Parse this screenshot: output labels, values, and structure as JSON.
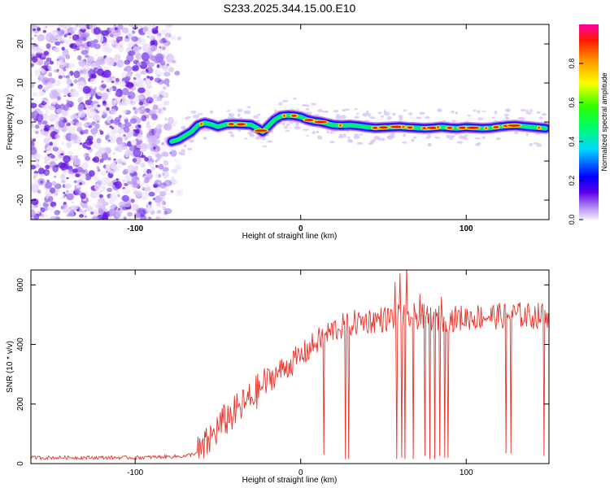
{
  "title": "S233.2025.344.15.00.E10",
  "chart_data": [
    {
      "type": "heatmap",
      "xlabel": "Height of straight line (km)",
      "ylabel": "Frequency (Hz)",
      "xlim": [
        -163,
        150
      ],
      "ylim": [
        -25,
        25
      ],
      "xticks": [
        -100,
        0,
        100
      ],
      "yticks": [
        -20,
        -10,
        0,
        10,
        20
      ],
      "noise_region_x": [
        -163,
        -80
      ],
      "ridge": {
        "x": [
          -78,
          -74,
          -70,
          -66,
          -62,
          -58,
          -54,
          -50,
          -45,
          -40,
          -35,
          -30,
          -26,
          -23,
          -20,
          -16,
          -12,
          -8,
          -4,
          0,
          4,
          8,
          12,
          16,
          20,
          25,
          30,
          35,
          40,
          45,
          50,
          55,
          60,
          65,
          70,
          75,
          80,
          85,
          90,
          95,
          100,
          105,
          110,
          115,
          120,
          125,
          130,
          135,
          140,
          145,
          148
        ],
        "y": [
          -5,
          -4.5,
          -3.5,
          -2.5,
          -0.8,
          -0.2,
          -0.6,
          -1.2,
          -0.6,
          -0.5,
          -0.6,
          -0.7,
          -1.6,
          -2.5,
          -1.2,
          0.5,
          1.5,
          1.7,
          1.6,
          1.3,
          0.6,
          0.2,
          0,
          -0.4,
          -0.8,
          -0.9,
          -0.8,
          -1,
          -1.3,
          -1.5,
          -1.4,
          -1.3,
          -1.2,
          -1.4,
          -1.5,
          -1.6,
          -1.5,
          -1.3,
          -1.5,
          -1.6,
          -1.4,
          -1.5,
          -1.6,
          -1.5,
          -1.2,
          -1,
          -0.9,
          -1.1,
          -1.3,
          -1.5,
          -1.6
        ]
      },
      "colorbar": {
        "label": "Normalized spectral amplitude",
        "range": [
          0,
          1
        ],
        "ticks": [
          "0.0",
          "0.2",
          "0.4",
          "0.6",
          "0.8"
        ]
      }
    },
    {
      "type": "line",
      "xlabel": "Height of straight line (km)",
      "ylabel": "SNR (10 * v/v)",
      "xlim": [
        -163,
        150
      ],
      "ylim": [
        0,
        650
      ],
      "xticks": [
        -100,
        0,
        100
      ],
      "yticks": [
        0,
        200,
        400,
        600
      ],
      "color": "#e8332a",
      "trend": {
        "x": [
          -163,
          -100,
          -70,
          -60,
          -55,
          -50,
          -45,
          -40,
          -30,
          -20,
          -10,
          0,
          10,
          20,
          30,
          40,
          50,
          60,
          70,
          80,
          90,
          100,
          110,
          120,
          130,
          140,
          150
        ],
        "y": [
          20,
          20,
          25,
          40,
          80,
          120,
          150,
          170,
          220,
          280,
          320,
          360,
          410,
          450,
          470,
          480,
          485,
          490,
          495,
          490,
          485,
          490,
          495,
          495,
          500,
          495,
          500
        ]
      },
      "dips": [
        {
          "x": 14,
          "y": 30
        },
        {
          "x": 27,
          "y": 15
        },
        {
          "x": 29,
          "y": 15
        },
        {
          "x": 58,
          "y": 15
        },
        {
          "x": 61,
          "y": 20
        },
        {
          "x": 63,
          "y": 15
        },
        {
          "x": 68,
          "y": 15
        },
        {
          "x": 72,
          "y": 20
        },
        {
          "x": 75,
          "y": 25
        },
        {
          "x": 78,
          "y": 15
        },
        {
          "x": 81,
          "y": 15
        },
        {
          "x": 84,
          "y": 25
        },
        {
          "x": 87,
          "y": 20
        },
        {
          "x": 89,
          "y": 20
        },
        {
          "x": 124,
          "y": 35
        },
        {
          "x": 127,
          "y": 35
        },
        {
          "x": 147,
          "y": 25
        }
      ],
      "peaks": [
        {
          "x": 57,
          "y": 610
        },
        {
          "x": 60,
          "y": 640
        },
        {
          "x": 64,
          "y": 660
        },
        {
          "x": 72,
          "y": 570
        },
        {
          "x": 85,
          "y": 560
        }
      ]
    }
  ]
}
